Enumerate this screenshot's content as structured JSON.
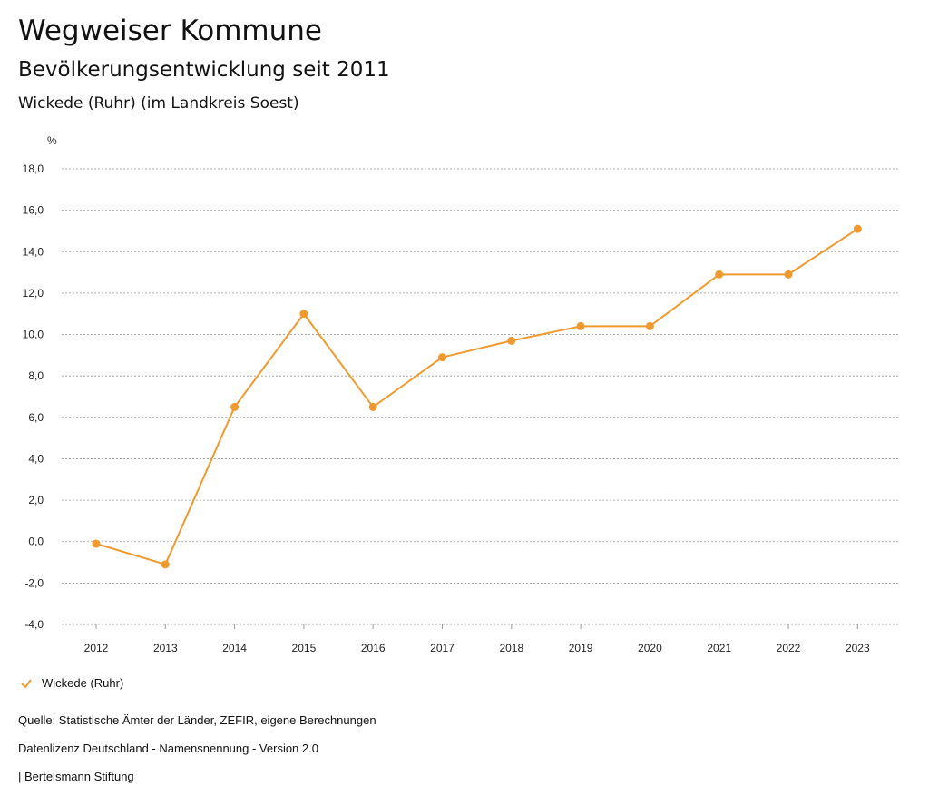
{
  "header": {
    "title": "Wegweiser Kommune",
    "subtitle": "Bevölkerungsentwicklung seit 2011",
    "region": "Wickede (Ruhr) (im Landkreis Soest)"
  },
  "chart_data": {
    "type": "line",
    "title": "Bevölkerungsentwicklung seit 2011",
    "ylabel": "%",
    "xlabel": "",
    "ylim": [
      -4,
      18
    ],
    "yticks": [
      "18,0",
      "16,0",
      "14,0",
      "12,0",
      "10,0",
      "8,0",
      "6,0",
      "4,0",
      "2,0",
      "0,0",
      "-2,0",
      "-4,0"
    ],
    "ytick_values": [
      18,
      16,
      14,
      12,
      10,
      8,
      6,
      4,
      2,
      0,
      -2,
      -4
    ],
    "categories": [
      "2012",
      "2013",
      "2014",
      "2015",
      "2016",
      "2017",
      "2018",
      "2019",
      "2020",
      "2021",
      "2022",
      "2023"
    ],
    "series": [
      {
        "name": "Wickede (Ruhr)",
        "color": "#f0992e",
        "values": [
          -0.1,
          -1.1,
          6.5,
          11.0,
          6.5,
          8.9,
          9.7,
          10.4,
          10.4,
          12.9,
          12.9,
          15.1
        ]
      }
    ],
    "grid": true,
    "legend_position": "bottom-left"
  },
  "footer": {
    "source": "Quelle: Statistische Ämter der Länder, ZEFIR, eigene Berechnungen",
    "license": "Datenlizenz Deutschland - Namensnennung - Version 2.0",
    "publisher": "| Bertelsmann Stiftung"
  }
}
